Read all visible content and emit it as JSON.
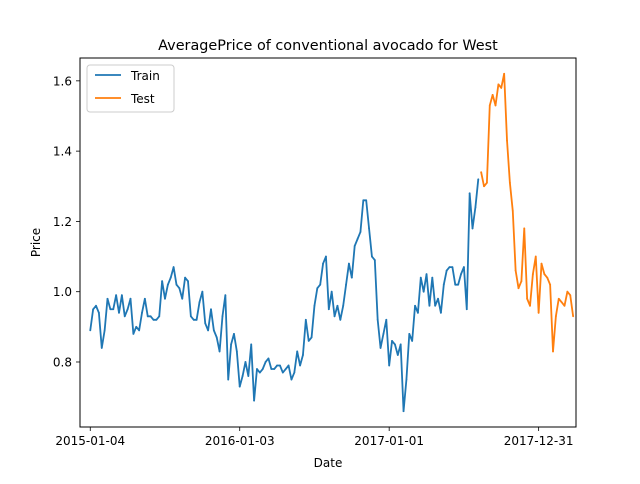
{
  "chart_data": {
    "type": "line",
    "title": "AveragePrice of conventional avocado for West",
    "xlabel": "Date",
    "ylabel": "Price",
    "xlim": [
      "2014-12-10",
      "2018-04-01"
    ],
    "ylim": [
      0.615,
      1.665
    ],
    "xticks": [
      "2015-01-04",
      "2016-01-03",
      "2017-01-01",
      "2017-12-31"
    ],
    "yticks": [
      "0.8",
      "1.0",
      "1.2",
      "1.4",
      "1.6"
    ],
    "grid": false,
    "legend_position": "upper left",
    "series": [
      {
        "name": "Train",
        "color": "#1f77b4",
        "start": "2015-01-04",
        "step_days": 7,
        "values": [
          0.89,
          0.95,
          0.96,
          0.94,
          0.84,
          0.89,
          0.98,
          0.95,
          0.95,
          0.99,
          0.94,
          0.99,
          0.93,
          0.95,
          0.98,
          0.88,
          0.9,
          0.89,
          0.94,
          0.98,
          0.93,
          0.93,
          0.92,
          0.92,
          0.93,
          1.03,
          0.98,
          1.02,
          1.04,
          1.07,
          1.02,
          1.01,
          0.98,
          1.04,
          1.03,
          0.93,
          0.92,
          0.92,
          0.97,
          1.0,
          0.91,
          0.89,
          0.95,
          0.89,
          0.87,
          0.83,
          0.93,
          0.99,
          0.75,
          0.85,
          0.88,
          0.83,
          0.73,
          0.76,
          0.8,
          0.76,
          0.85,
          0.69,
          0.78,
          0.77,
          0.78,
          0.8,
          0.81,
          0.78,
          0.78,
          0.79,
          0.79,
          0.77,
          0.78,
          0.79,
          0.75,
          0.77,
          0.83,
          0.79,
          0.82,
          0.92,
          0.86,
          0.87,
          0.96,
          1.01,
          1.02,
          1.08,
          1.1,
          0.95,
          1.0,
          0.93,
          0.96,
          0.92,
          0.96,
          1.02,
          1.08,
          1.04,
          1.13,
          1.15,
          1.17,
          1.26,
          1.26,
          1.18,
          1.1,
          1.09,
          0.92,
          0.84,
          0.88,
          0.92,
          0.79,
          0.86,
          0.85,
          0.82,
          0.85,
          0.66,
          0.75,
          0.88,
          0.86,
          0.96,
          0.94,
          1.04,
          1.0,
          1.05,
          0.96,
          1.04,
          0.96,
          0.98,
          0.94,
          1.02,
          1.06,
          1.07,
          1.07,
          1.02,
          1.02,
          1.05,
          1.07,
          0.95,
          1.28,
          1.18,
          1.24,
          1.32
        ]
      },
      {
        "name": "Test",
        "color": "#ff7f0e",
        "start": "2017-08-13",
        "step_days": 7,
        "values": [
          1.34,
          1.3,
          1.31,
          1.53,
          1.56,
          1.53,
          1.59,
          1.58,
          1.62,
          1.43,
          1.31,
          1.23,
          1.06,
          1.01,
          1.03,
          1.18,
          0.98,
          0.96,
          1.05,
          1.1,
          0.94,
          1.08,
          1.05,
          1.04,
          1.02,
          0.83,
          0.93,
          0.98,
          0.97,
          0.96,
          1.0,
          0.99,
          0.93
        ]
      }
    ]
  }
}
